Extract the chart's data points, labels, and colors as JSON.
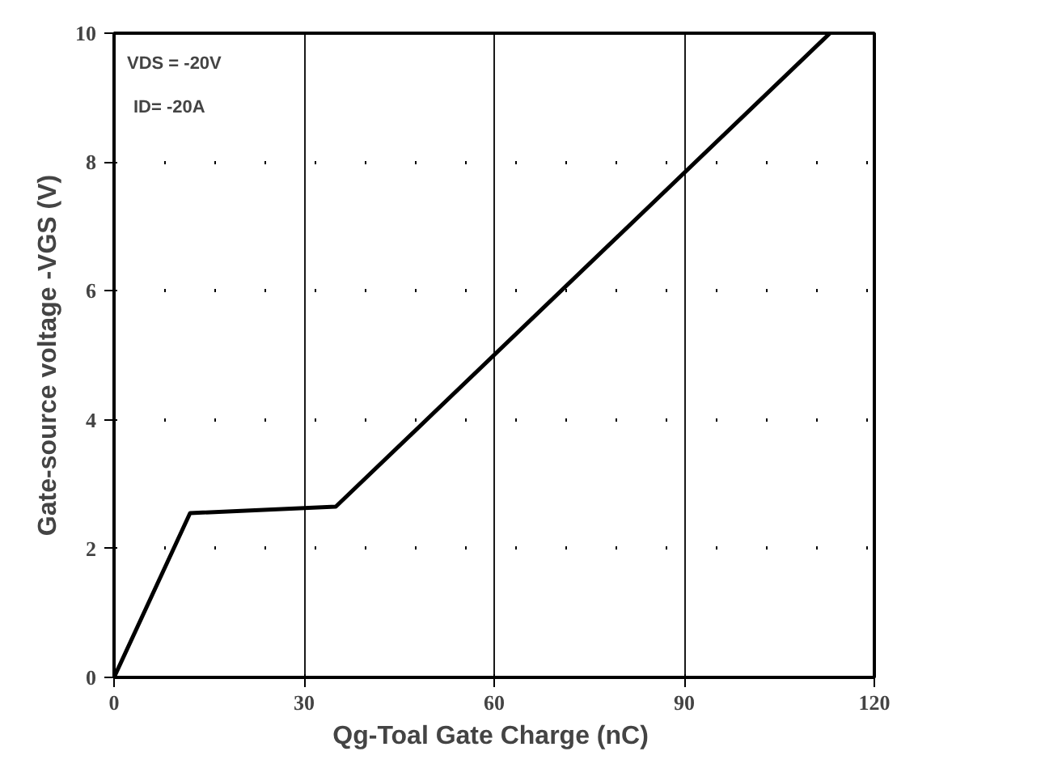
{
  "chart_data": {
    "type": "line",
    "xlabel": "Qg-Toal Gate Charge  (nC)",
    "ylabel": "Gate-source voltage -VGS (V)",
    "annotations": [
      "VDS = -20V",
      "ID= -20A"
    ],
    "x": [
      0,
      12,
      35,
      113
    ],
    "values": [
      0,
      2.55,
      2.65,
      10
    ],
    "color": "#000000",
    "xlim": [
      0,
      120
    ],
    "ylim": [
      0,
      10
    ],
    "xticks": [
      0,
      30,
      60,
      90,
      120
    ],
    "yticks": [
      0,
      2,
      4,
      6,
      8,
      10
    ],
    "grid": true,
    "line_style": "solid"
  }
}
